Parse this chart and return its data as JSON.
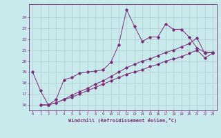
{
  "xlabel": "Windchill (Refroidissement éolien,°C)",
  "bg_color": "#c8eaea",
  "line_color": "#7a2d7a",
  "grid_color": "#b0cccc",
  "xlim": [
    -0.5,
    23.5
  ],
  "ylim": [
    15.5,
    25.2
  ],
  "xticks": [
    0,
    1,
    2,
    3,
    4,
    5,
    6,
    7,
    8,
    9,
    10,
    11,
    12,
    13,
    14,
    15,
    16,
    17,
    18,
    19,
    20,
    21,
    22,
    23
  ],
  "yticks": [
    16,
    17,
    18,
    19,
    20,
    21,
    22,
    23,
    24
  ],
  "line1_x": [
    0,
    1,
    2,
    3,
    4,
    5,
    6,
    7,
    8,
    9,
    10,
    11,
    12,
    13,
    14,
    15,
    16,
    17,
    18,
    19,
    20,
    21,
    22,
    23
  ],
  "line1_y": [
    19.0,
    17.3,
    16.0,
    16.5,
    18.3,
    18.5,
    18.9,
    19.0,
    19.1,
    19.2,
    19.9,
    21.5,
    24.7,
    23.2,
    21.8,
    22.2,
    22.2,
    23.4,
    22.9,
    22.9,
    22.2,
    21.2,
    20.8,
    20.8
  ],
  "line2_x": [
    1,
    2,
    3,
    4,
    5,
    6,
    7,
    8,
    9,
    10,
    11,
    12,
    13,
    14,
    15,
    16,
    17,
    18,
    19,
    20,
    21,
    22,
    23
  ],
  "line2_y": [
    16.0,
    16.0,
    16.2,
    16.5,
    16.9,
    17.2,
    17.5,
    17.9,
    18.2,
    18.6,
    19.0,
    19.4,
    19.7,
    20.0,
    20.2,
    20.5,
    20.8,
    21.0,
    21.3,
    21.6,
    22.1,
    20.7,
    20.8
  ],
  "line3_x": [
    1,
    2,
    3,
    4,
    5,
    6,
    7,
    8,
    9,
    10,
    11,
    12,
    13,
    14,
    15,
    16,
    17,
    18,
    19,
    20,
    21,
    22,
    23
  ],
  "line3_y": [
    16.0,
    16.0,
    16.2,
    16.5,
    16.7,
    17.0,
    17.3,
    17.6,
    17.9,
    18.2,
    18.5,
    18.8,
    19.0,
    19.2,
    19.5,
    19.7,
    20.0,
    20.2,
    20.4,
    20.7,
    21.0,
    20.3,
    20.7
  ]
}
